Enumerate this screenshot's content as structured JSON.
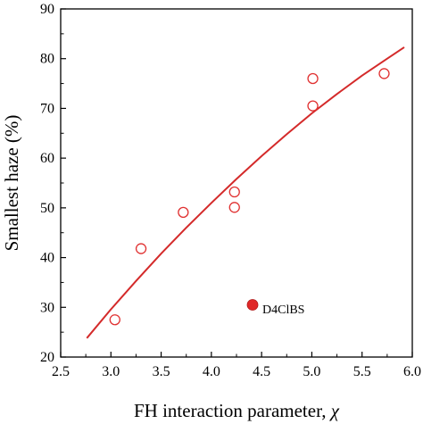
{
  "chart_data": {
    "type": "scatter",
    "xlabel": "FH interaction parameter, ",
    "xlabel_symbol": "χ",
    "ylabel": "Smallest haze (%)",
    "xlim": [
      2.5,
      6.0
    ],
    "ylim": [
      20,
      90
    ],
    "xticks": [
      2.5,
      3.0,
      3.5,
      4.0,
      4.5,
      5.0,
      5.5,
      6.0
    ],
    "xtick_labels": [
      "2.5",
      "3.0",
      "3.5",
      "4.0",
      "4.5",
      "5.0",
      "5.5",
      "6.0"
    ],
    "yticks": [
      20,
      30,
      40,
      50,
      60,
      70,
      80,
      90
    ],
    "ytick_labels": [
      "20",
      "30",
      "40",
      "50",
      "60",
      "70",
      "80",
      "90"
    ],
    "grid": false,
    "series": [
      {
        "marker": "open-circle",
        "color": "#e03030",
        "points": [
          {
            "x": 3.04,
            "y": 27.5
          },
          {
            "x": 3.3,
            "y": 41.8
          },
          {
            "x": 3.72,
            "y": 49.1
          },
          {
            "x": 4.23,
            "y": 53.2
          },
          {
            "x": 4.23,
            "y": 50.1
          },
          {
            "x": 5.01,
            "y": 76.0
          },
          {
            "x": 5.01,
            "y": 70.5
          },
          {
            "x": 5.72,
            "y": 77.0
          }
        ]
      },
      {
        "name": "D4ClBS",
        "marker": "filled-circle",
        "color": "#e02828",
        "points": [
          {
            "x": 4.41,
            "y": 30.5
          }
        ]
      }
    ],
    "fit_curve": {
      "color": "#d42a2a",
      "points": [
        {
          "x": 2.76,
          "y": 23.8
        },
        {
          "x": 3.0,
          "y": 29.6
        },
        {
          "x": 3.25,
          "y": 35.3
        },
        {
          "x": 3.5,
          "y": 40.8
        },
        {
          "x": 3.75,
          "y": 46.0
        },
        {
          "x": 4.0,
          "y": 51.0
        },
        {
          "x": 4.25,
          "y": 55.8
        },
        {
          "x": 4.5,
          "y": 60.4
        },
        {
          "x": 4.75,
          "y": 64.8
        },
        {
          "x": 5.0,
          "y": 69.0
        },
        {
          "x": 5.25,
          "y": 72.9
        },
        {
          "x": 5.5,
          "y": 76.6
        },
        {
          "x": 5.75,
          "y": 80.0
        },
        {
          "x": 5.92,
          "y": 82.3
        }
      ]
    }
  }
}
